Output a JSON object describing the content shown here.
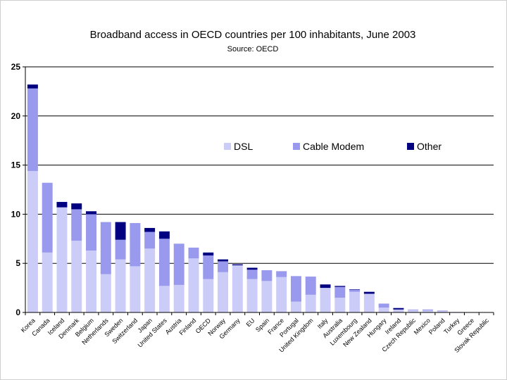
{
  "chart_data": {
    "type": "bar",
    "stacked": true,
    "title": "Broadband access in OECD countries per 100 inhabitants, June 2003",
    "subtitle": "Source: OECD",
    "xlabel": "",
    "ylabel": "",
    "ylim": [
      0,
      25
    ],
    "yticks": [
      0,
      5,
      10,
      15,
      20,
      25
    ],
    "grid": true,
    "legend_position": "upper-right inside plot",
    "categories": [
      "Korea",
      "Canada",
      "Iceland",
      "Denmark",
      "Belgium",
      "Netherlands",
      "Sweden",
      "Switzerland",
      "Japan",
      "United States",
      "Austria",
      "Finland",
      "OECD",
      "Norway",
      "Germany",
      "EU",
      "Spain",
      "France",
      "Portugal",
      "United Kingdom",
      "Italy",
      "Australia",
      "Luxembourg",
      "New Zealand",
      "Hungary",
      "Ireland",
      "Czech Republic",
      "Mexico",
      "Poland",
      "Turkey",
      "Greece",
      "Slovak Republic"
    ],
    "series": [
      {
        "name": "DSL",
        "color": "#ccccf8",
        "values": [
          14.4,
          6.1,
          10.7,
          7.3,
          6.3,
          3.9,
          5.4,
          4.7,
          6.5,
          2.7,
          2.8,
          5.5,
          3.4,
          4.1,
          4.8,
          3.4,
          3.2,
          3.6,
          1.1,
          1.8,
          2.5,
          1.5,
          2.1,
          1.9,
          0.5,
          0.3,
          0.25,
          0.2,
          0.15,
          0.05,
          0.03,
          0.02
        ]
      },
      {
        "name": "Cable Modem",
        "color": "#9999ee",
        "values": [
          8.4,
          7.1,
          0.0,
          3.2,
          3.7,
          5.3,
          2.0,
          4.4,
          1.7,
          4.8,
          4.2,
          1.1,
          2.4,
          1.1,
          0.0,
          0.95,
          1.1,
          0.6,
          2.6,
          1.85,
          0.0,
          1.1,
          0.2,
          0.0,
          0.4,
          0.0,
          0.05,
          0.1,
          0.05,
          0.0,
          0.0,
          0.0
        ]
      },
      {
        "name": "Other",
        "color": "#000080",
        "values": [
          0.4,
          0.0,
          0.55,
          0.6,
          0.3,
          0.0,
          1.8,
          0.0,
          0.4,
          0.75,
          0.0,
          0.0,
          0.3,
          0.2,
          0.1,
          0.2,
          0.0,
          0.0,
          0.0,
          0.0,
          0.35,
          0.1,
          0.05,
          0.2,
          0.0,
          0.15,
          0.0,
          0.0,
          0.0,
          0.0,
          0.0,
          0.0
        ]
      }
    ]
  }
}
